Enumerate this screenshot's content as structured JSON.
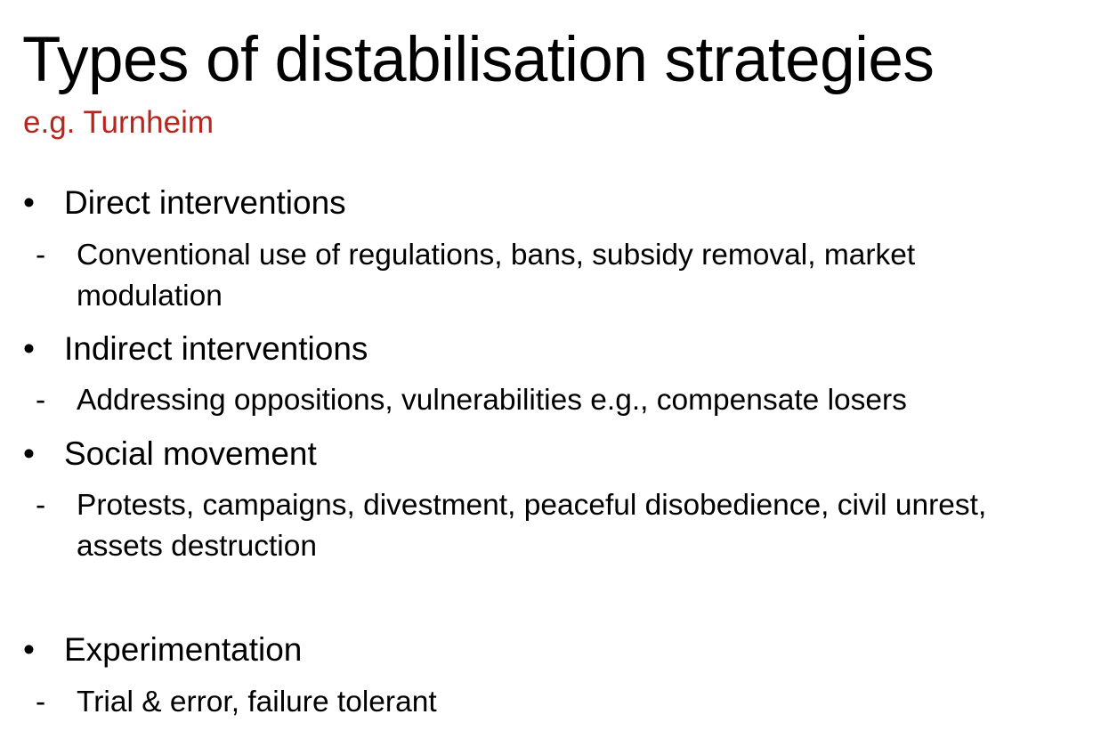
{
  "slide": {
    "title": "Types of distabilisation strategies",
    "subtitle": "e.g. Turnheim",
    "subtitle_color": "#b5261e",
    "bullet_glyph": "•",
    "dash_glyph": "-",
    "items": [
      {
        "heading": "Direct interventions",
        "detail_lines": [
          "Conventional use of regulations, bans, subsidy removal, market",
          "modulation"
        ]
      },
      {
        "heading": "Indirect interventions",
        "detail_lines": [
          "Addressing oppositions, vulnerabilities e.g., compensate losers"
        ]
      },
      {
        "heading": "Social movement",
        "detail_lines": [
          "Protests, campaigns, divestment, peaceful disobedience, civil unrest,",
          "assets destruction"
        ]
      },
      {
        "heading": "Experimentation",
        "detail_lines": [
          "Trial & error, failure tolerant"
        ]
      }
    ]
  }
}
